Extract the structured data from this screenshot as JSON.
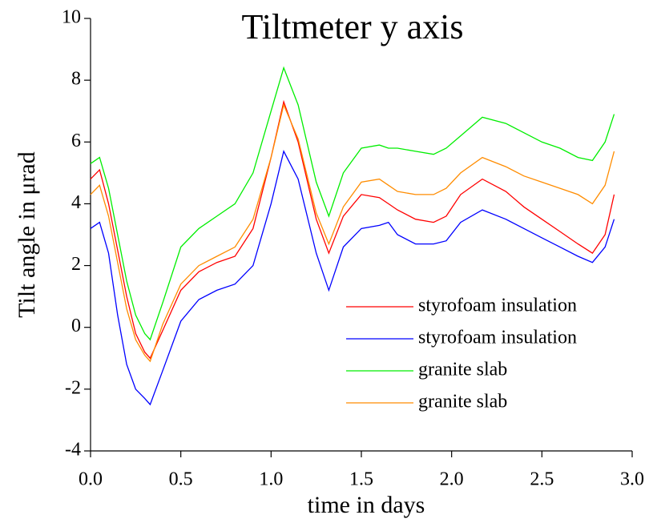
{
  "chart_data": {
    "type": "line",
    "title": "Tiltmeter y axis",
    "x_label": "time in days",
    "y_label": "Tilt angle in μrad",
    "x": [
      0,
      0.05,
      0.1,
      0.15,
      0.2,
      0.25,
      0.3,
      0.33,
      0.4,
      0.5,
      0.6,
      0.7,
      0.8,
      0.9,
      1.0,
      1.07,
      1.15,
      1.25,
      1.32,
      1.4,
      1.5,
      1.6,
      1.65,
      1.7,
      1.8,
      1.9,
      1.97,
      2.05,
      2.17,
      2.3,
      2.4,
      2.5,
      2.6,
      2.7,
      2.78,
      2.85,
      2.9
    ],
    "series": [
      {
        "name": "styrofoam insulation",
        "color": "#ff0000",
        "values": [
          4.8,
          5.1,
          4.0,
          2.5,
          1.0,
          -0.2,
          -0.8,
          -1.0,
          -0.1,
          1.2,
          1.8,
          2.1,
          2.3,
          3.2,
          5.5,
          7.3,
          6.0,
          3.5,
          2.4,
          3.6,
          4.3,
          4.2,
          4.0,
          3.8,
          3.5,
          3.4,
          3.6,
          4.3,
          4.8,
          4.4,
          3.9,
          3.5,
          3.1,
          2.7,
          2.4,
          3.0,
          4.3
        ]
      },
      {
        "name": "styrofoam insulation",
        "color": "#0000ff",
        "values": [
          3.2,
          3.4,
          2.4,
          0.4,
          -1.2,
          -2.0,
          -2.3,
          -2.5,
          -1.4,
          0.2,
          0.9,
          1.2,
          1.4,
          2.0,
          4.0,
          5.7,
          4.8,
          2.4,
          1.2,
          2.6,
          3.2,
          3.3,
          3.4,
          3.0,
          2.7,
          2.7,
          2.8,
          3.4,
          3.8,
          3.5,
          3.2,
          2.9,
          2.6,
          2.3,
          2.1,
          2.6,
          3.5
        ]
      },
      {
        "name": "granite slab",
        "color": "#00ee00",
        "values": [
          5.3,
          5.5,
          4.5,
          3.0,
          1.5,
          0.4,
          -0.2,
          -0.4,
          0.8,
          2.6,
          3.2,
          3.6,
          4.0,
          5.0,
          7.0,
          8.4,
          7.2,
          4.7,
          3.6,
          5.0,
          5.8,
          5.9,
          5.8,
          5.8,
          5.7,
          5.6,
          5.8,
          6.2,
          6.8,
          6.6,
          6.3,
          6.0,
          5.8,
          5.5,
          5.4,
          6.0,
          6.9
        ]
      },
      {
        "name": "granite slab",
        "color": "#ff8c00",
        "values": [
          4.3,
          4.6,
          3.6,
          2.1,
          0.6,
          -0.4,
          -0.9,
          -1.1,
          0.1,
          1.4,
          2.0,
          2.3,
          2.6,
          3.5,
          5.5,
          7.2,
          6.1,
          3.7,
          2.7,
          3.9,
          4.7,
          4.8,
          4.6,
          4.4,
          4.3,
          4.3,
          4.5,
          5.0,
          5.5,
          5.2,
          4.9,
          4.7,
          4.5,
          4.3,
          4.0,
          4.6,
          5.7
        ]
      }
    ],
    "xlim": [
      0,
      3
    ],
    "xticks": [
      {
        "value": 0,
        "label": "0.0"
      },
      0.5,
      {
        "value": 1,
        "label": "1.0"
      },
      1.5,
      {
        "value": 2,
        "label": "2.0"
      },
      2.5,
      {
        "value": 3,
        "label": "3.0"
      }
    ],
    "ylim": [
      -4,
      10
    ],
    "yticks": [
      -4,
      -2,
      0,
      2,
      4,
      6,
      8,
      10
    ]
  }
}
